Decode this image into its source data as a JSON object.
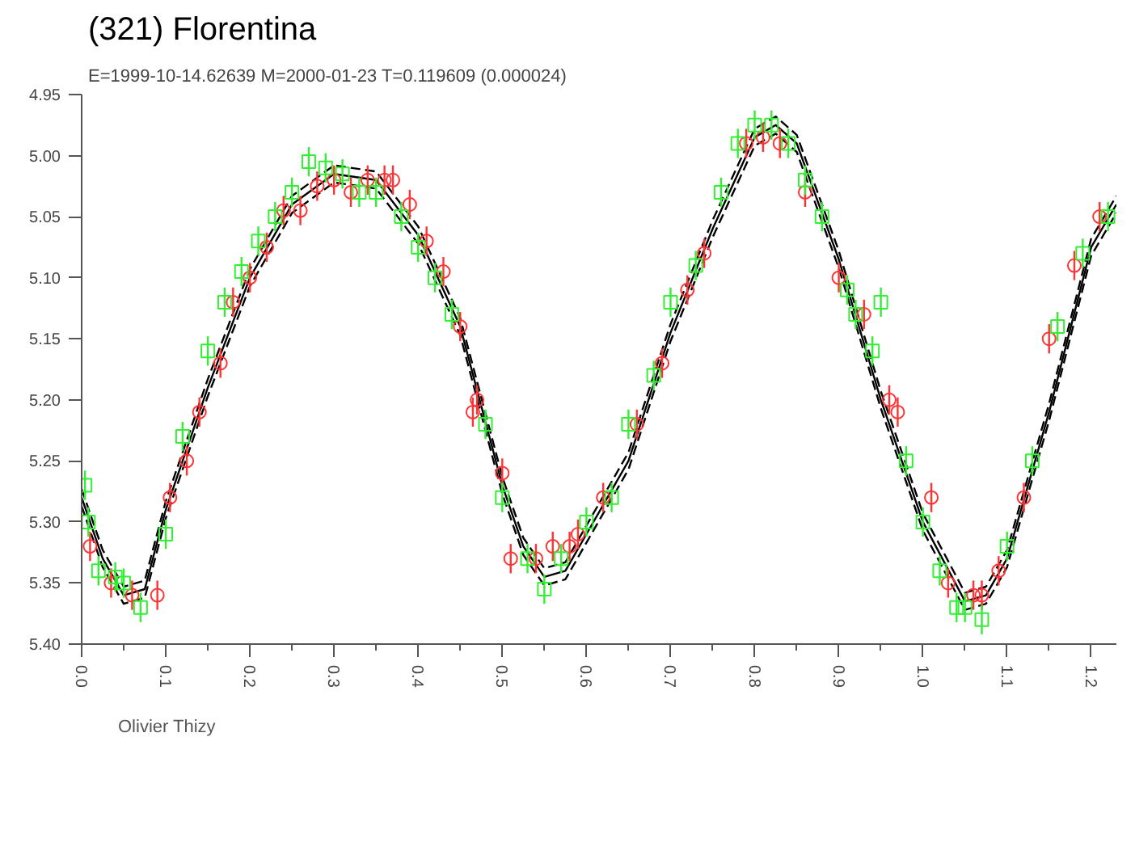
{
  "chart_data": {
    "type": "scatter",
    "title": "(321) Florentina",
    "subtitle": "E=1999-10-14.62639    M=2000-01-23    T=0.119609 (0.000024)",
    "xlim": [
      0,
      1.23
    ],
    "ylim": [
      5.4,
      4.95
    ],
    "xticks": [
      {
        "value": 0,
        "label": "0.0"
      },
      {
        "value": 0.05,
        "label": null
      },
      0.1,
      {
        "value": 0.15,
        "label": null
      },
      0.2,
      {
        "value": 0.25,
        "label": null
      },
      0.3,
      {
        "value": 0.35,
        "label": null
      },
      0.4,
      {
        "value": 0.45,
        "label": null
      },
      0.5,
      {
        "value": 0.55,
        "label": null
      },
      0.6,
      {
        "value": 0.65,
        "label": null
      },
      0.7,
      {
        "value": 0.75,
        "label": null
      },
      0.8,
      {
        "value": 0.85,
        "label": null
      },
      0.9,
      {
        "value": 0.95,
        "label": null
      },
      {
        "value": 1,
        "label": "1.0"
      },
      {
        "value": 1.05,
        "label": null
      },
      1.1,
      {
        "value": 1.15,
        "label": null
      },
      1.2
    ],
    "yticks": [
      4.95,
      {
        "value": 5.0,
        "label": "5.00"
      },
      5.05,
      {
        "value": 5.1,
        "label": "5.10"
      },
      5.15,
      {
        "value": 5.2,
        "label": "5.20"
      },
      5.25,
      {
        "value": 5.3,
        "label": "5.30"
      },
      5.35,
      {
        "value": 5.4,
        "label": "5.40"
      }
    ],
    "grid": false,
    "legend": "bottom left",
    "series": [
      {
        "type": "line",
        "color": "#000000",
        "line_style": "solid",
        "marker": "none",
        "x": [
          0,
          0.025,
          0.05,
          0.075,
          0.1,
          0.15,
          0.2,
          0.25,
          0.3,
          0.35,
          0.4,
          0.45,
          0.5,
          0.525,
          0.55,
          0.575,
          0.6,
          0.65,
          0.7,
          0.75,
          0.8,
          0.825,
          0.85,
          0.9,
          0.95,
          1.0,
          1.05,
          1.075,
          1.1,
          1.15,
          1.2,
          1.23
        ],
        "values": [
          5.28,
          5.33,
          5.36,
          5.355,
          5.29,
          5.19,
          5.1,
          5.04,
          5.015,
          5.02,
          5.065,
          5.14,
          5.27,
          5.32,
          5.345,
          5.34,
          5.31,
          5.25,
          5.145,
          5.06,
          4.985,
          4.975,
          4.99,
          5.085,
          5.2,
          5.3,
          5.365,
          5.36,
          5.33,
          5.21,
          5.075,
          5.04
        ]
      },
      {
        "type": "line",
        "color": "#000000",
        "line_style": "dashed",
        "marker": "none",
        "x": [
          0,
          0.025,
          0.05,
          0.075,
          0.1,
          0.15,
          0.2,
          0.25,
          0.3,
          0.35,
          0.4,
          0.45,
          0.5,
          0.525,
          0.55,
          0.575,
          0.6,
          0.65,
          0.7,
          0.75,
          0.8,
          0.825,
          0.85,
          0.9,
          0.95,
          1.0,
          1.05,
          1.075,
          1.1,
          1.15,
          1.2,
          1.23
        ],
        "values": [
          5.273,
          5.323,
          5.353,
          5.348,
          5.283,
          5.183,
          5.093,
          5.033,
          5.008,
          5.013,
          5.058,
          5.133,
          5.263,
          5.313,
          5.338,
          5.333,
          5.303,
          5.243,
          5.138,
          5.053,
          4.978,
          4.968,
          4.983,
          5.078,
          5.193,
          5.293,
          5.358,
          5.353,
          5.323,
          5.203,
          5.068,
          5.033
        ]
      },
      {
        "type": "line",
        "color": "#000000",
        "line_style": "dashed",
        "marker": "none",
        "x": [
          0,
          0.025,
          0.05,
          0.075,
          0.1,
          0.15,
          0.2,
          0.25,
          0.3,
          0.35,
          0.4,
          0.45,
          0.5,
          0.525,
          0.55,
          0.575,
          0.6,
          0.65,
          0.7,
          0.75,
          0.8,
          0.825,
          0.85,
          0.9,
          0.95,
          1.0,
          1.05,
          1.075,
          1.1,
          1.15,
          1.2,
          1.23
        ],
        "values": [
          5.287,
          5.337,
          5.367,
          5.362,
          5.297,
          5.197,
          5.107,
          5.047,
          5.022,
          5.027,
          5.072,
          5.147,
          5.277,
          5.327,
          5.352,
          5.347,
          5.317,
          5.257,
          5.152,
          5.067,
          4.992,
          4.982,
          4.997,
          5.092,
          5.207,
          5.307,
          5.372,
          5.367,
          5.337,
          5.217,
          5.082,
          5.047
        ]
      },
      {
        "name": "Olivier Thizy",
        "color": "#ff3333",
        "marker": "circle",
        "x": [
          0.01,
          0.035,
          0.06,
          0.09,
          0.105,
          0.125,
          0.14,
          0.165,
          0.18,
          0.2,
          0.22,
          0.24,
          0.26,
          0.28,
          0.3,
          0.32,
          0.34,
          0.36,
          0.37,
          0.39,
          0.41,
          0.43,
          0.45,
          0.465,
          0.47,
          0.5,
          0.51,
          0.54,
          0.56,
          0.58,
          0.59,
          0.62,
          0.66,
          0.69,
          0.72,
          0.74,
          0.79,
          0.81,
          0.83,
          0.86,
          0.9,
          0.93,
          0.96,
          0.97,
          1.01,
          1.03,
          1.06,
          1.07,
          1.09,
          1.12,
          1.15,
          1.18,
          1.21
        ],
        "values": [
          5.32,
          5.35,
          5.36,
          5.36,
          5.28,
          5.25,
          5.21,
          5.17,
          5.12,
          5.1,
          5.075,
          5.045,
          5.045,
          5.025,
          5.02,
          5.03,
          5.02,
          5.02,
          5.02,
          5.04,
          5.07,
          5.095,
          5.14,
          5.21,
          5.2,
          5.26,
          5.33,
          5.33,
          5.32,
          5.32,
          5.31,
          5.28,
          5.22,
          5.17,
          5.11,
          5.08,
          4.99,
          4.985,
          4.99,
          5.03,
          5.1,
          5.13,
          5.2,
          5.21,
          5.28,
          5.35,
          5.36,
          5.36,
          5.34,
          5.28,
          5.15,
          5.09,
          5.05
        ],
        "errors": [
          0.012,
          0.012,
          0.012,
          0.012,
          0.012,
          0.012,
          0.012,
          0.012,
          0.012,
          0.012,
          0.012,
          0.012,
          0.012,
          0.012,
          0.012,
          0.012,
          0.012,
          0.012,
          0.012,
          0.012,
          0.012,
          0.012,
          0.012,
          0.012,
          0.012,
          0.012,
          0.012,
          0.012,
          0.012,
          0.012,
          0.012,
          0.012,
          0.012,
          0.012,
          0.012,
          0.012,
          0.012,
          0.012,
          0.012,
          0.012,
          0.012,
          0.012,
          0.012,
          0.012,
          0.012,
          0.012,
          0.012,
          0.012,
          0.012,
          0.012,
          0.012,
          0.012,
          0.012
        ]
      },
      {
        "color": "#33ee33",
        "marker": "square",
        "x": [
          0.004,
          0.008,
          0.02,
          0.04,
          0.05,
          0.07,
          0.1,
          0.12,
          0.15,
          0.17,
          0.19,
          0.21,
          0.23,
          0.25,
          0.27,
          0.29,
          0.31,
          0.33,
          0.35,
          0.38,
          0.4,
          0.42,
          0.44,
          0.48,
          0.5,
          0.53,
          0.55,
          0.57,
          0.6,
          0.63,
          0.65,
          0.68,
          0.7,
          0.73,
          0.76,
          0.78,
          0.8,
          0.82,
          0.84,
          0.86,
          0.88,
          0.91,
          0.92,
          0.94,
          0.95,
          0.98,
          1.0,
          1.02,
          1.04,
          1.05,
          1.07,
          1.1,
          1.13,
          1.16,
          1.19,
          1.22
        ],
        "values": [
          5.27,
          5.3,
          5.34,
          5.345,
          5.35,
          5.37,
          5.31,
          5.23,
          5.16,
          5.12,
          5.095,
          5.07,
          5.05,
          5.03,
          5.005,
          5.01,
          5.015,
          5.03,
          5.03,
          5.05,
          5.075,
          5.1,
          5.13,
          5.22,
          5.28,
          5.33,
          5.355,
          5.33,
          5.3,
          5.28,
          5.22,
          5.18,
          5.12,
          5.09,
          5.03,
          4.99,
          4.975,
          4.975,
          4.99,
          5.02,
          5.05,
          5.11,
          5.13,
          5.16,
          5.12,
          5.25,
          5.3,
          5.34,
          5.37,
          5.37,
          5.38,
          5.32,
          5.25,
          5.14,
          5.08,
          5.05
        ],
        "errors": [
          0.012,
          0.012,
          0.012,
          0.012,
          0.012,
          0.012,
          0.012,
          0.012,
          0.012,
          0.012,
          0.012,
          0.012,
          0.012,
          0.012,
          0.012,
          0.012,
          0.012,
          0.012,
          0.012,
          0.012,
          0.012,
          0.012,
          0.012,
          0.012,
          0.012,
          0.012,
          0.012,
          0.012,
          0.012,
          0.012,
          0.012,
          0.012,
          0.012,
          0.012,
          0.012,
          0.012,
          0.012,
          0.012,
          0.012,
          0.012,
          0.012,
          0.012,
          0.012,
          0.012,
          0.012,
          0.012,
          0.012,
          0.012,
          0.012,
          0.012,
          0.012,
          0.012,
          0.012,
          0.012,
          0.012,
          0.012
        ]
      }
    ]
  }
}
